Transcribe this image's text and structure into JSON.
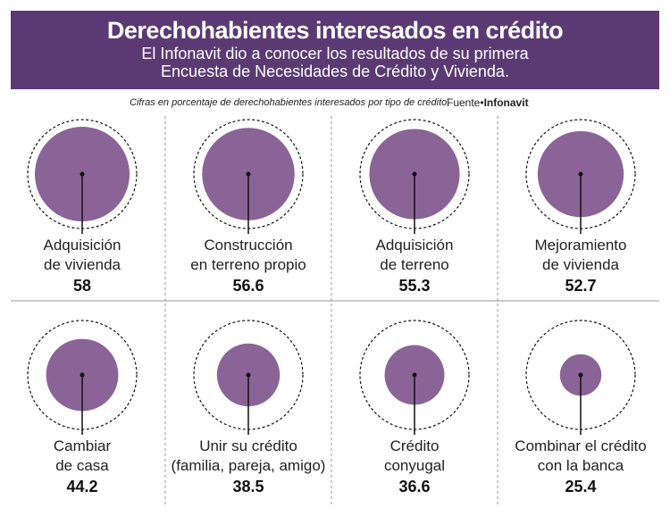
{
  "header": {
    "title": "Derechohabientes interesados en crédito",
    "subtitle_line1": "El Infonavit dio a conocer los resultados de su primera",
    "subtitle_line2": "Encuesta de Necesidades de Crédito y Vivienda."
  },
  "note": "Cifras en porcentaje de derechohabientes interesados por tipo de crédito",
  "source": {
    "prefix": "Fuente•",
    "name": "Infonavit"
  },
  "chart_data": {
    "type": "proportional-circles",
    "unit": "%",
    "fill_color": "#8a6496",
    "items": [
      {
        "label": [
          "Adquisición",
          "de vivienda"
        ],
        "value": 58
      },
      {
        "label": [
          "Construcción",
          "en terreno propio"
        ],
        "value": 56.6
      },
      {
        "label": [
          "Adquisición",
          "de terreno"
        ],
        "value": 55.3
      },
      {
        "label": [
          "Mejoramiento",
          "de vivienda"
        ],
        "value": 52.7
      },
      {
        "label": [
          "Cambiar",
          "de casa"
        ],
        "value": 44.2
      },
      {
        "label": [
          "Unir su crédito",
          "(familia, pareja, amigo)"
        ],
        "value": 38.5
      },
      {
        "label": [
          "Crédito",
          "conyugal"
        ],
        "value": 36.6
      },
      {
        "label": [
          "Combinar el crédito",
          "con la banca"
        ],
        "value": 25.4
      }
    ]
  }
}
